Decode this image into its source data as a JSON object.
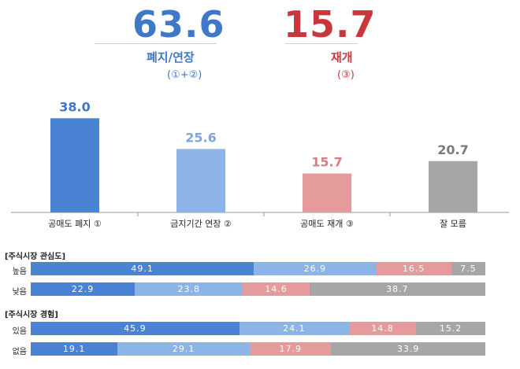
{
  "summary": {
    "left": {
      "value": "63.6",
      "label": "폐지/연장",
      "note": "(①+②)",
      "color": "#3f78c7"
    },
    "right": {
      "value": "15.7",
      "label": "재개",
      "note": "(③)",
      "color": "#c8383a"
    }
  },
  "chart_data": [
    {
      "type": "bar",
      "categories": [
        "공매도 폐지 ①",
        "금지기간 연장 ②",
        "공매도 재개 ③",
        "잘 모름"
      ],
      "values": [
        38.0,
        25.6,
        15.7,
        20.7
      ],
      "value_labels": [
        "38.0",
        "25.6",
        "15.7",
        "20.7"
      ],
      "colors": [
        "#4a82d4",
        "#8db4e6",
        "#e59a9c",
        "#a6a6a6"
      ],
      "label_colors": [
        "#3f78c7",
        "#7ea6dc",
        "#d77f82",
        "#7a7a7a"
      ],
      "ylim": [
        0,
        40
      ],
      "grid": false
    },
    {
      "type": "bar",
      "orientation": "horizontal-stacked",
      "title": "[주식시장 관심도]",
      "categories": [
        "높음",
        "낮음"
      ],
      "series": [
        {
          "values": [
            49.1,
            22.9
          ],
          "labels": [
            "49.1",
            "22.9"
          ],
          "color": "#4a82d4"
        },
        {
          "values": [
            26.9,
            23.8
          ],
          "labels": [
            "26.9",
            "23.8"
          ],
          "color": "#8db4e6"
        },
        {
          "values": [
            16.5,
            14.6
          ],
          "labels": [
            "16.5",
            "14.6"
          ],
          "color": "#e59a9c"
        },
        {
          "values": [
            7.5,
            38.7
          ],
          "labels": [
            "7.5",
            "38.7"
          ],
          "color": "#a6a6a6"
        }
      ]
    },
    {
      "type": "bar",
      "orientation": "horizontal-stacked",
      "title": "[주식시장 경험]",
      "categories": [
        "있음",
        "없음"
      ],
      "series": [
        {
          "values": [
            45.9,
            19.1
          ],
          "labels": [
            "45.9",
            "19.1"
          ],
          "color": "#4a82d4"
        },
        {
          "values": [
            24.1,
            29.1
          ],
          "labels": [
            "24.1",
            "29.1"
          ],
          "color": "#8db4e6"
        },
        {
          "values": [
            14.8,
            17.9
          ],
          "labels": [
            "14.8",
            "17.9"
          ],
          "color": "#e59a9c"
        },
        {
          "values": [
            15.2,
            33.9
          ],
          "labels": [
            "15.2",
            "33.9"
          ],
          "color": "#a6a6a6"
        }
      ]
    }
  ]
}
